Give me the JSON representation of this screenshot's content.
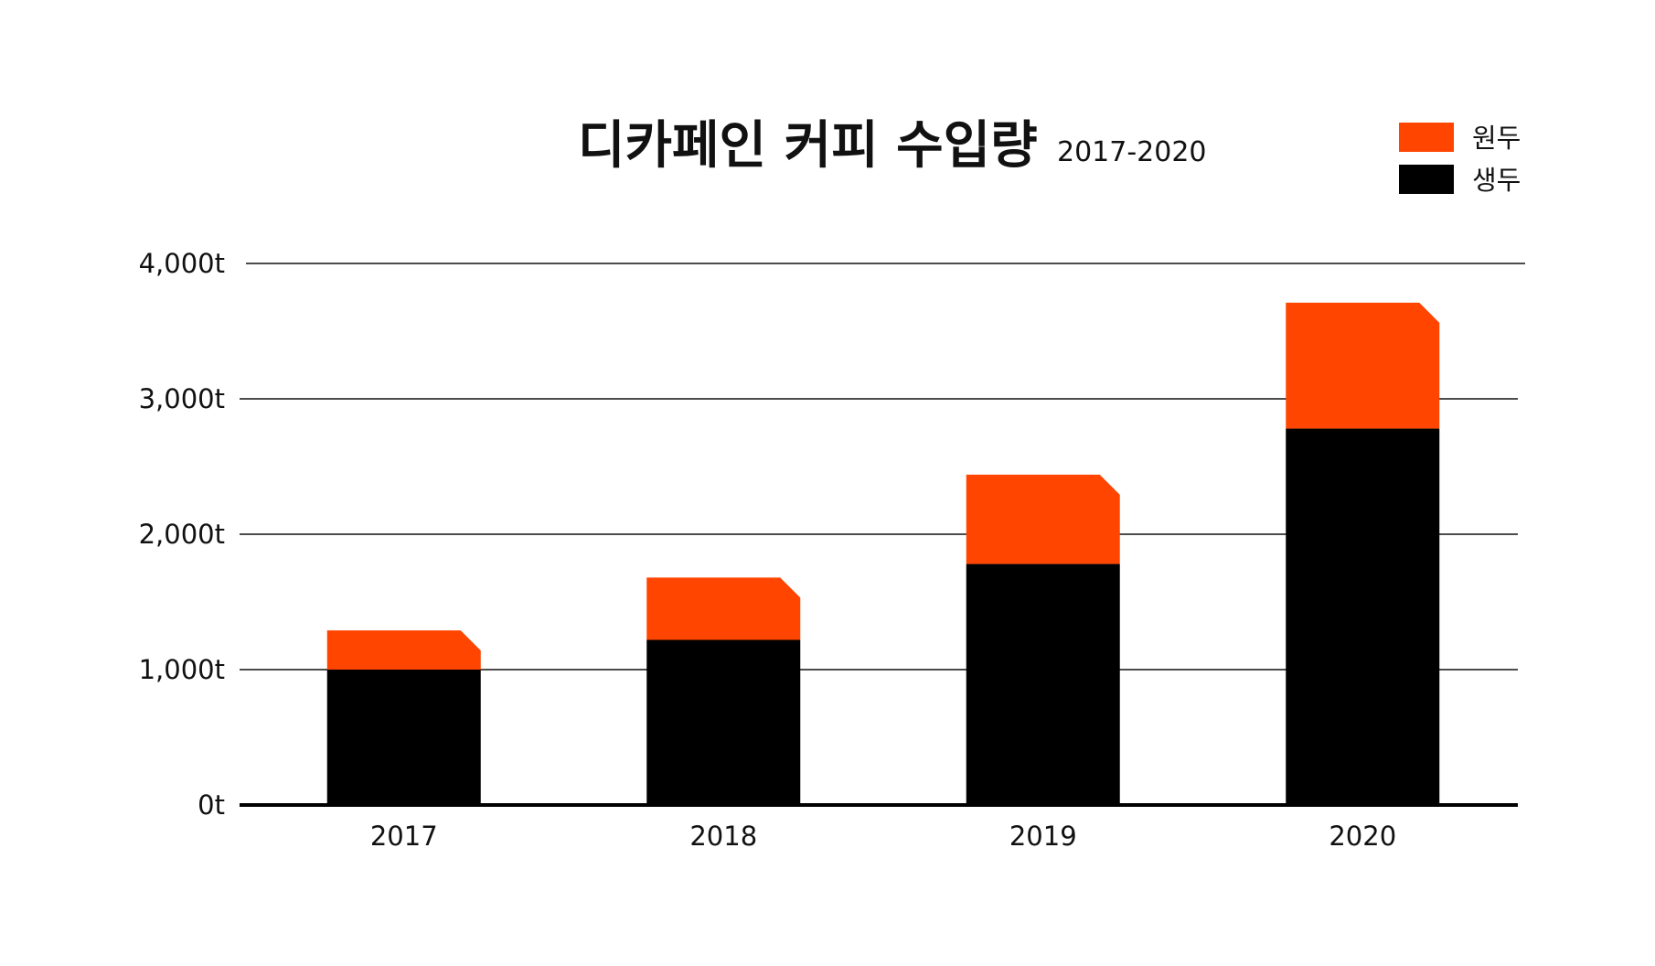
{
  "chart_data": {
    "type": "bar",
    "stacked": true,
    "title": "디카페인 커피 수입량",
    "subtitle": "2017-2020",
    "categories": [
      "2017",
      "2018",
      "2019",
      "2020"
    ],
    "series": [
      {
        "name": "생두",
        "color": "#000000",
        "values": [
          1000,
          1220,
          1780,
          2780
        ]
      },
      {
        "name": "원두",
        "color": "#ff4500",
        "values": [
          290,
          460,
          660,
          930
        ]
      }
    ],
    "ylim": [
      0,
      4000
    ],
    "y_ticks": [
      0,
      1000,
      2000,
      3000,
      4000
    ],
    "y_tick_labels": [
      "0t",
      "1,000t",
      "2,000t",
      "3,000t",
      "4,000t"
    ],
    "grid": true,
    "legend": {
      "position": "top-right",
      "entries": [
        "원두",
        "생두"
      ]
    },
    "xlabel": "",
    "ylabel": ""
  }
}
